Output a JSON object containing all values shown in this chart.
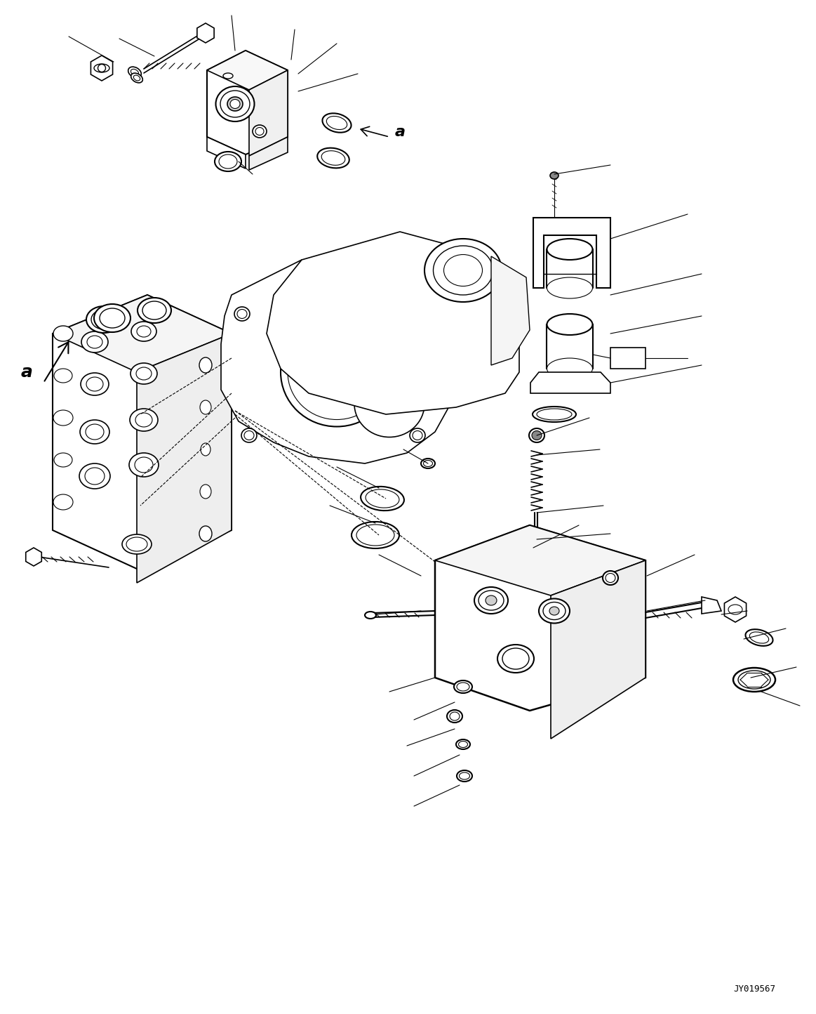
{
  "background_color": "#ffffff",
  "line_color": "#000000",
  "figure_width": 11.63,
  "figure_height": 14.44,
  "watermark_text": "JY019567",
  "dpi": 100
}
